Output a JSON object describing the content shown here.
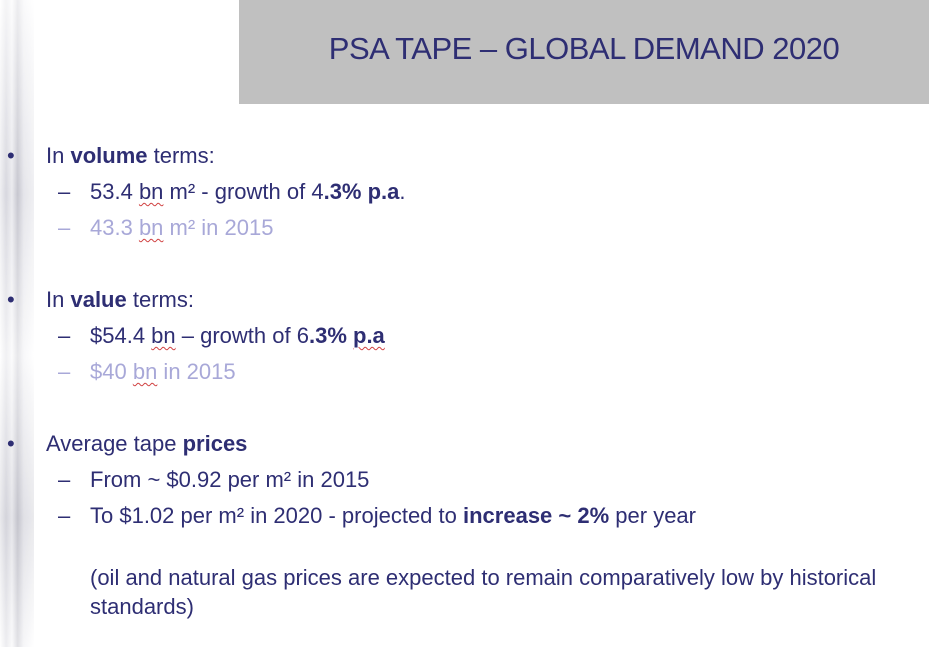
{
  "slide": {
    "title": "PSA TAPE – GLOBAL DEMAND 2020"
  },
  "bullets": {
    "marker": "•",
    "dash": "–",
    "volume": {
      "prefix": "In ",
      "bold": "volume",
      "suffix": " terms:",
      "line1_a": "53.4 ",
      "line1_bn": "bn",
      "line1_b": " m²  - growth of 4",
      "line1_bold": ".3% p.a",
      "line1_end": ".",
      "line2_a": "43.3 ",
      "line2_bn": "bn",
      "line2_b": " m² in 2015"
    },
    "value": {
      "prefix": "In ",
      "bold": "value",
      "suffix": " terms:",
      "line1_a": "$54.4 ",
      "line1_bn": "bn",
      "line1_b": " – growth of 6",
      "line1_bold": ".3% ",
      "line1_pa": "p.a",
      "line2_a": "$40 ",
      "line2_bn": "bn",
      "line2_b": " in 2015"
    },
    "prices": {
      "prefix": "Average tape ",
      "bold": "prices",
      "line1": "From ~ $0.92 per m² in 2015",
      "line2_a": "To $1.02 per m² in 2020 - projected to ",
      "line2_bold": "increase ~ 2%",
      "line2_b": " per year",
      "note": "(oil and natural gas prices are expected to remain comparatively low by historical standards)"
    }
  }
}
